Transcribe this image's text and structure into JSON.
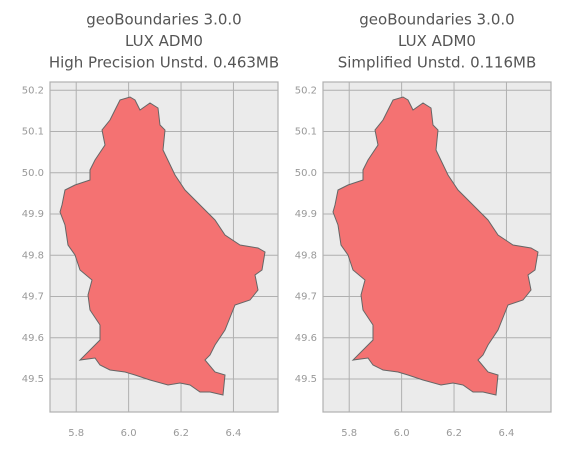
{
  "chart_data": [
    {
      "type": "map",
      "title": [
        "geoBoundaries 3.0.0",
        "LUX ADM0",
        "High Precision Unstd. 0.463MB"
      ],
      "xlim": [
        5.7,
        6.57
      ],
      "ylim": [
        49.42,
        50.22
      ],
      "xticks": [
        5.8,
        {
          "value": 6,
          "label": "6.0"
        },
        6.2,
        6.4
      ],
      "yticks": [
        49.5,
        49.6,
        49.7,
        49.8,
        49.9,
        {
          "value": 50,
          "label": "50.0"
        },
        50.1,
        50.2
      ],
      "grid": true,
      "color": "#f47272"
    },
    {
      "type": "map",
      "title": [
        "geoBoundaries 3.0.0",
        "LUX ADM0",
        "Simplified Unstd. 0.116MB"
      ],
      "xlim": [
        5.7,
        6.57
      ],
      "ylim": [
        49.42,
        50.22
      ],
      "xticks": [
        5.8,
        {
          "value": 6,
          "label": "6.0"
        },
        6.2,
        6.4
      ],
      "yticks": [
        49.5,
        49.6,
        49.7,
        49.8,
        49.9,
        {
          "value": 50,
          "label": "50.0"
        },
        50.1,
        50.2
      ],
      "grid": true,
      "color": "#f47272"
    }
  ]
}
